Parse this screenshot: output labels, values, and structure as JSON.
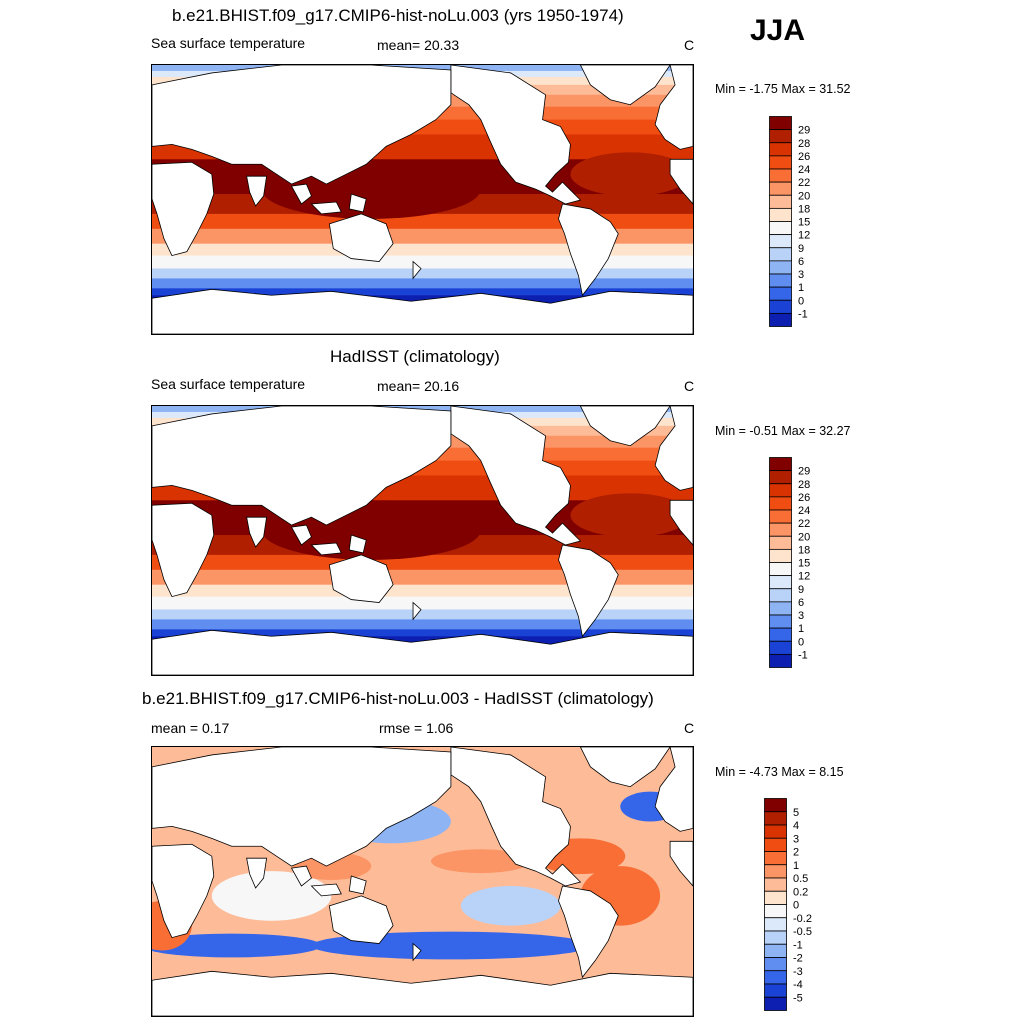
{
  "season": "JJA",
  "panels": [
    {
      "id": "model",
      "title": "b.e21.BHIST.f09_g17.CMIP6-hist-noLu.003 (yrs 1950-1974)",
      "left_label": "Sea surface temperature",
      "center_label": "mean=  20.33",
      "units": "C",
      "minmax": "Min =  -1.75 Max =  31.52",
      "colorbar_labels": [
        "29",
        "28",
        "26",
        "24",
        "22",
        "20",
        "18",
        "15",
        "12",
        "9",
        "6",
        "3",
        "1",
        "0",
        "-1"
      ],
      "colorbar_colors": [
        "#800000",
        "#b01f00",
        "#d83300",
        "#f04d12",
        "#f86e35",
        "#fc9566",
        "#fdbb98",
        "#fee3cd",
        "#f7f7f7",
        "#dce9fb",
        "#b9d3f8",
        "#8fb4f4",
        "#5f8df0",
        "#3566ea",
        "#1a43d6",
        "#0c1fb0"
      ]
    },
    {
      "id": "obs",
      "title": "HadISST (climatology)",
      "left_label": "Sea surface temperature",
      "center_label": "mean=  20.16",
      "units": "C",
      "minmax": "Min =  -0.51 Max =  32.27",
      "colorbar_labels": [
        "29",
        "28",
        "26",
        "24",
        "22",
        "20",
        "18",
        "15",
        "12",
        "9",
        "6",
        "3",
        "1",
        "0",
        "-1"
      ],
      "colorbar_colors": [
        "#800000",
        "#b01f00",
        "#d83300",
        "#f04d12",
        "#f86e35",
        "#fc9566",
        "#fdbb98",
        "#fee3cd",
        "#f7f7f7",
        "#dce9fb",
        "#b9d3f8",
        "#8fb4f4",
        "#5f8df0",
        "#3566ea",
        "#1a43d6",
        "#0c1fb0"
      ]
    },
    {
      "id": "diff",
      "title": "b.e21.BHIST.f09_g17.CMIP6-hist-noLu.003 - HadISST (climatology)",
      "left_label": "mean =   0.17",
      "center_label": "rmse =   1.06",
      "units": "C",
      "minmax": "Min =  -4.73 Max =   8.15",
      "colorbar_labels": [
        "5",
        "4",
        "3",
        "2",
        "1",
        "0.5",
        "0.2",
        "0",
        "-0.2",
        "-0.5",
        "-1",
        "-2",
        "-3",
        "-4",
        "-5"
      ],
      "colorbar_colors": [
        "#800000",
        "#b01f00",
        "#d83300",
        "#f04d12",
        "#f86e35",
        "#fc9566",
        "#fdbb98",
        "#fee3cd",
        "#f7f7f7",
        "#dce9fb",
        "#b9d3f8",
        "#8fb4f4",
        "#5f8df0",
        "#3566ea",
        "#1a43d6",
        "#0c1fb0"
      ]
    }
  ]
}
